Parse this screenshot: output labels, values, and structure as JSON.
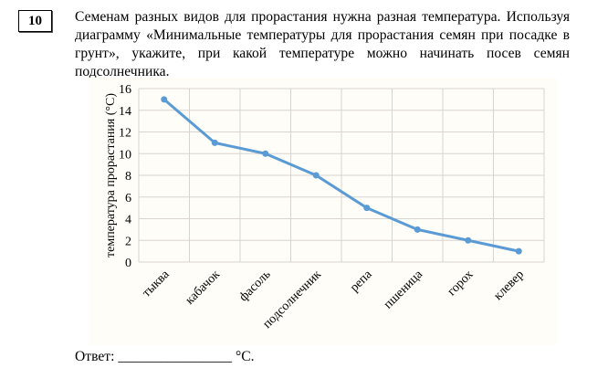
{
  "question": {
    "number": "10",
    "text": "Семенам разных видов для прорастания нужна разная температура. Используя диаграмму «Минимальные температуры для прорастания семян при посадке в грунт», укажите, при какой температуре можно начинать посев семян подсолнечника."
  },
  "answer": {
    "label": "Ответ:",
    "blank": "________________",
    "unit": "°C."
  },
  "chart_data": {
    "type": "line",
    "title": "",
    "xlabel": "",
    "ylabel": "температура прорастания (°C)",
    "categories": [
      "тыква",
      "кабачок",
      "фасоль",
      "подсолнечник",
      "репа",
      "пшеница",
      "горох",
      "клевер"
    ],
    "values": [
      15,
      11,
      10,
      8,
      5,
      3,
      2,
      1
    ],
    "ylim": [
      0,
      16
    ],
    "yticks": [
      0,
      2,
      4,
      6,
      8,
      10,
      12,
      14,
      16
    ],
    "grid": true,
    "legend": null,
    "line_color": "#5b9bd5",
    "background": "#fefdf7",
    "grid_color": "#d9d3cf"
  }
}
